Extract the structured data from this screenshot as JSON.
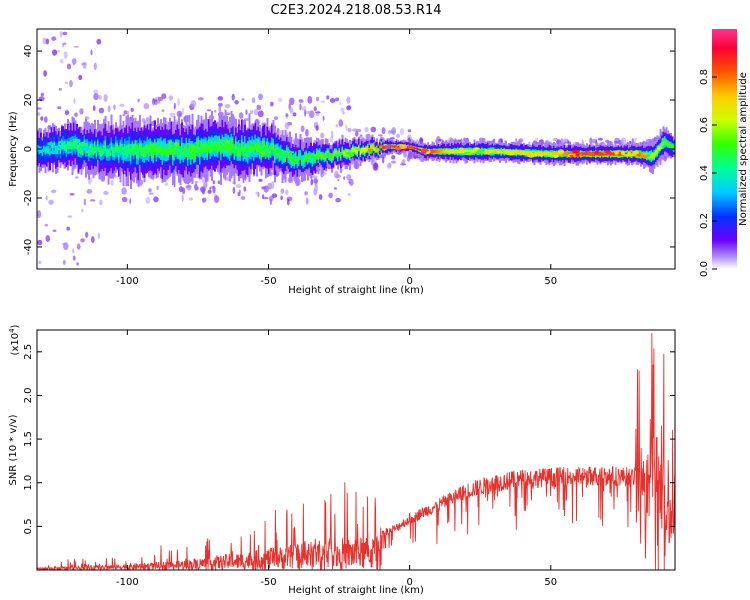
{
  "title": "C2E3.2024.218.08.53.R14",
  "chart_data": [
    {
      "type": "heatmap",
      "xlabel": "Height of straight line (km)",
      "ylabel": "Frequency (Hz)",
      "xlim": [
        -132,
        94
      ],
      "ylim": [
        -49,
        49
      ],
      "xticks": [
        -100,
        -50,
        0,
        50
      ],
      "yticks": [
        -40,
        -20,
        0,
        20,
        40
      ],
      "xtick_labels": [
        "-100",
        "-50",
        "0",
        "50"
      ],
      "ytick_labels": [
        "-40",
        "-20",
        "0",
        "20",
        "40"
      ],
      "colorbar": {
        "label": "Normalized spectral amplitude",
        "range": [
          0.0,
          1.0
        ],
        "ticks": [
          0.0,
          0.2,
          0.4,
          0.6,
          0.8
        ],
        "tick_labels": [
          "0.0",
          "0.2",
          "0.4",
          "0.6",
          "0.8"
        ],
        "colormap": "hsv-rainbow"
      },
      "ridge": [
        {
          "x": -130,
          "center": 0,
          "halfwidth": 4,
          "amp": 0.35
        },
        {
          "x": -120,
          "center": 1,
          "halfwidth": 5,
          "amp": 0.45
        },
        {
          "x": -110,
          "center": 0,
          "halfwidth": 5,
          "amp": 0.45
        },
        {
          "x": -100,
          "center": -1,
          "halfwidth": 6,
          "amp": 0.45
        },
        {
          "x": -90,
          "center": 0,
          "halfwidth": 6,
          "amp": 0.5
        },
        {
          "x": -80,
          "center": -1,
          "halfwidth": 6,
          "amp": 0.5
        },
        {
          "x": -70,
          "center": 1,
          "halfwidth": 6,
          "amp": 0.5
        },
        {
          "x": -60,
          "center": 0,
          "halfwidth": 6,
          "amp": 0.5
        },
        {
          "x": -50,
          "center": 0,
          "halfwidth": 5,
          "amp": 0.5
        },
        {
          "x": -40,
          "center": -4,
          "halfwidth": 4,
          "amp": 0.5
        },
        {
          "x": -30,
          "center": -3,
          "halfwidth": 3,
          "amp": 0.55
        },
        {
          "x": -20,
          "center": -1,
          "halfwidth": 2.5,
          "amp": 0.6
        },
        {
          "x": -12,
          "center": 0,
          "halfwidth": 2,
          "amp": 0.75
        },
        {
          "x": -8,
          "center": 1,
          "halfwidth": 1.5,
          "amp": 0.95
        },
        {
          "x": 0,
          "center": 1,
          "halfwidth": 1,
          "amp": 0.95
        },
        {
          "x": 5,
          "center": -1,
          "halfwidth": 1.5,
          "amp": 0.9
        },
        {
          "x": 15,
          "center": -1,
          "halfwidth": 2,
          "amp": 0.65
        },
        {
          "x": 30,
          "center": -1,
          "halfwidth": 2,
          "amp": 0.65
        },
        {
          "x": 50,
          "center": -2,
          "halfwidth": 2,
          "amp": 0.7
        },
        {
          "x": 60,
          "center": -2,
          "halfwidth": 2,
          "amp": 0.85
        },
        {
          "x": 70,
          "center": -2,
          "halfwidth": 2,
          "amp": 0.85
        },
        {
          "x": 80,
          "center": -2,
          "halfwidth": 2,
          "amp": 0.85
        },
        {
          "x": 86,
          "center": -3,
          "halfwidth": 3,
          "amp": 0.6
        },
        {
          "x": 90,
          "center": 3,
          "halfwidth": 3,
          "amp": 0.55
        },
        {
          "x": 94,
          "center": 0,
          "halfwidth": 2,
          "amp": 0.5
        }
      ]
    },
    {
      "type": "line",
      "xlabel": "Height of straight line (km)",
      "ylabel": "SNR (10 * v/v)",
      "y_multiplier_label": "(x10",
      "y_multiplier_exp": "4",
      "y_multiplier_close": ")",
      "xlim": [
        -132,
        94
      ],
      "ylim": [
        0,
        2.75
      ],
      "xticks": [
        -100,
        -50,
        0,
        50
      ],
      "yticks": [
        0.5,
        1.0,
        1.5,
        2.0,
        2.5
      ],
      "xtick_labels": [
        "-100",
        "-50",
        "0",
        "50"
      ],
      "ytick_labels": [
        "0.5",
        "1.0",
        "1.5",
        "2.0",
        "2.5"
      ],
      "color": "#e8312c",
      "x": [
        -132,
        -120,
        -110,
        -100,
        -90,
        -80,
        -70,
        -60,
        -50,
        -40,
        -30,
        -20,
        -15,
        -10,
        -5,
        0,
        5,
        10,
        20,
        30,
        40,
        50,
        60,
        70,
        80,
        84,
        86,
        88,
        90,
        92,
        94
      ],
      "y": [
        0.03,
        0.05,
        0.06,
        0.08,
        0.1,
        0.13,
        0.18,
        0.22,
        0.28,
        0.33,
        0.4,
        0.42,
        0.42,
        0.45,
        0.5,
        0.62,
        0.7,
        0.78,
        0.95,
        1.05,
        1.1,
        1.12,
        1.13,
        1.14,
        1.12,
        1.05,
        1.4,
        1.3,
        0.9,
        0.6,
        1.1
      ]
    }
  ]
}
